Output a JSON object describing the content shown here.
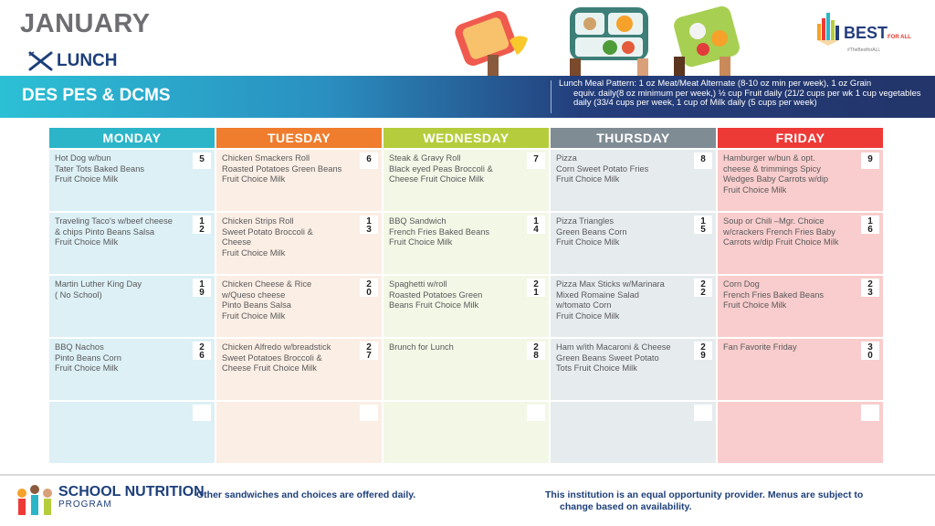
{
  "header": {
    "month": "JANUARY",
    "meal": "LUNCH",
    "school": "DES PES & DCMS",
    "pattern_line1": "Lunch Meal Pattern: 1 oz Meat/Meat Alternate (8-10 oz min per week), 1 oz Grain",
    "pattern_rest": "equiv. daily(8 oz minimum per week,) ½ cup Fruit daily (21/2 cups per wk 1 cup vegetables daily (33/4 cups per week, 1 cup of Milk daily (5 cups per week)",
    "logo_text": "BEST",
    "logo_sub": "FOR ALL",
    "logo_tagline": "#TheBestforALL"
  },
  "colors": {
    "monday": "#2cb5c9",
    "tuesday": "#ef7d2d",
    "wednesday": "#b5cd3c",
    "thursday": "#7f8c94",
    "friday": "#ee3a37",
    "monday_cell": "#dcf0f5",
    "tuesday_cell": "#fbeee4",
    "wednesday_cell": "#f3f7e6",
    "thursday_cell": "#e6ebed",
    "friday_cell": "#f9cdcd"
  },
  "days": [
    "MONDAY",
    "TUESDAY",
    "WEDNESDAY",
    "THURSDAY",
    "FRIDAY"
  ],
  "weeks": [
    [
      {
        "date": "5",
        "menu": "Hot Dog w/bun\n Tater Tots Baked  Beans\nFruit Choice Milk"
      },
      {
        "date": "6",
        "menu": "Chicken Smackers Roll\nRoasted Potatoes Green Beans\nFruit Choice Milk"
      },
      {
        "date": "7",
        "menu": "Steak & Gravy Roll\nBlack eyed Peas Broccoli &\nCheese Fruit Choice Milk"
      },
      {
        "date": "8",
        "menu": "Pizza\nCorn Sweet Potato Fries\n Fruit Choice Milk"
      },
      {
        "date": "9",
        "menu": "Hamburger w/bun & opt.\ncheese & trimmings Spicy\nWedges Baby Carrots w/dip\nFruit Choice Milk"
      }
    ],
    [
      {
        "date": "12",
        "menu": "Traveling Taco's w/beef cheese\n& chips Pinto Beans Salsa\nFruit Choice Milk"
      },
      {
        "date": "13",
        "menu": "Chicken Strips Roll\n Sweet Potato  Broccoli &\nCheese\n Fruit Choice Milk"
      },
      {
        "date": "14",
        "menu": "BBQ Sandwich\nFrench Fries Baked Beans\n Fruit Choice Milk"
      },
      {
        "date": "15",
        "menu": "Pizza Triangles\nGreen Beans Corn\nFruit Choice Milk"
      },
      {
        "date": "16",
        "menu": "Soup or Chili –Mgr. Choice\nw/crackers French Fries Baby\nCarrots w/dip Fruit Choice Milk"
      }
    ],
    [
      {
        "date": "19",
        "menu": "Martin Luther King Day\n( No School)"
      },
      {
        "date": "20",
        "menu": "Chicken Cheese & Rice\nw/Queso cheese\nPinto Beans Salsa\nFruit Choice Milk"
      },
      {
        "date": "21",
        "menu": "Spaghetti w/roll\n Roasted Potatoes Green\nBeans Fruit Choice Milk"
      },
      {
        "date": "22",
        "menu": "Pizza Max Sticks w/Marinara\nMixed Romaine Salad\nw/tomato Corn\nFruit Choice Milk"
      },
      {
        "date": "23",
        "menu": "Corn Dog\nFrench Fries Baked Beans\nFruit Choice Milk"
      }
    ],
    [
      {
        "date": "26",
        "menu": "BBQ Nachos\nPinto Beans  Corn\nFruit Choice Milk"
      },
      {
        "date": "27",
        "menu": "Chicken Alfredo w/breadstick\nSweet Potatoes Broccoli &\nCheese Fruit Choice Milk"
      },
      {
        "date": "28",
        "menu": "Brunch for Lunch"
      },
      {
        "date": "29",
        "menu": "Ham w/ith Macaroni & Cheese\nGreen Beans Sweet Potato\nTots Fruit Choice Milk"
      },
      {
        "date": "30",
        "menu": "Fan Favorite Friday"
      }
    ],
    [
      {
        "date": "",
        "menu": ""
      },
      {
        "date": "",
        "menu": ""
      },
      {
        "date": "",
        "menu": ""
      },
      {
        "date": "",
        "menu": ""
      },
      {
        "date": "",
        "menu": ""
      }
    ]
  ],
  "footer": {
    "program_big": "SCHOOL NUTRITION",
    "program_small": "PROGRAM",
    "left_note": "Other sandwiches and choices are offered daily.",
    "right_note_1": "This institution is an equal opportunity provider. Menus are subject to",
    "right_note_2": "change based on availability."
  }
}
